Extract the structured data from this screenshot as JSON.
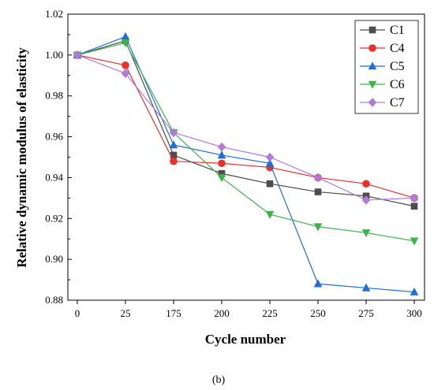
{
  "figure": {
    "caption": "(b)"
  },
  "chart_data": {
    "type": "line",
    "xlabel": "Cycle number",
    "ylabel": "Relative dynamic modulus of elasticity",
    "x": [
      0,
      25,
      175,
      200,
      225,
      250,
      275,
      300
    ],
    "x_tick_labels": [
      "0",
      "25",
      "175",
      "200",
      "225",
      "250",
      "275",
      "300"
    ],
    "x_break": [
      40,
      165
    ],
    "ylim": [
      0.88,
      1.02
    ],
    "y_ticks": [
      0.88,
      0.9,
      0.92,
      0.94,
      0.96,
      0.98,
      1.0,
      1.02
    ],
    "y_tick_labels": [
      "0.88",
      "0.90",
      "0.92",
      "0.94",
      "0.96",
      "0.98",
      "1.00",
      "1.02"
    ],
    "grid": false,
    "legend_position": "top-right",
    "series": [
      {
        "name": "C1",
        "color": "#4d4d4d",
        "marker": "square",
        "values": [
          1.0,
          1.007,
          0.951,
          0.942,
          0.937,
          0.933,
          0.931,
          0.926
        ]
      },
      {
        "name": "C4",
        "color": "#e8322b",
        "marker": "circle",
        "values": [
          1.0,
          0.995,
          0.948,
          0.947,
          0.945,
          0.94,
          0.937,
          0.93
        ]
      },
      {
        "name": "C5",
        "color": "#1f6fd6",
        "marker": "triangle-up",
        "values": [
          1.0,
          1.009,
          0.956,
          0.951,
          0.947,
          0.888,
          0.886,
          0.884
        ]
      },
      {
        "name": "C6",
        "color": "#3bb54a",
        "marker": "triangle-down",
        "values": [
          1.0,
          1.006,
          0.962,
          0.94,
          0.922,
          0.916,
          0.913,
          0.909
        ]
      },
      {
        "name": "C7",
        "color": "#b07ad9",
        "marker": "diamond",
        "values": [
          1.0,
          0.991,
          0.962,
          0.955,
          0.95,
          0.94,
          0.929,
          0.93
        ]
      }
    ]
  }
}
